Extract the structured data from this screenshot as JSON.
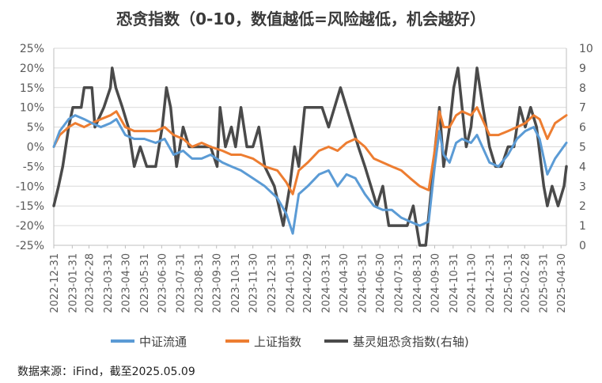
{
  "title": "恐贪指数（0-10，数值越低=风险越低，机会越好）",
  "source": "数据来源：iFind，截至2025.05.09",
  "chart_data": {
    "type": "line",
    "title": "恐贪指数（0-10，数值越低=风险越低，机会越好）",
    "x_ticks": [
      "2022-12-31",
      "2023-01-31",
      "2023-02-28",
      "2023-03-31",
      "2023-04-30",
      "2023-05-31",
      "2023-06-30",
      "2023-07-31",
      "2023-08-31",
      "2023-09-30",
      "2023-10-31",
      "2023-11-30",
      "2023-12-31",
      "2024-01-31",
      "2024-02-29",
      "2024-03-31",
      "2024-04-30",
      "2024-05-31",
      "2024-06-30",
      "2024-07-31",
      "2024-08-31",
      "2024-09-30",
      "2024-10-31",
      "2024-11-30",
      "2024-12-31",
      "2025-01-31",
      "2025-02-28",
      "2025-03-31",
      "2025-04-30"
    ],
    "x_range": [
      "2022-12-31",
      "2025-05-09"
    ],
    "y_left_ticks": [
      "25%",
      "20%",
      "15%",
      "10%",
      "5%",
      "0%",
      "-5%",
      "-10%",
      "-15%",
      "-20%",
      "-25%"
    ],
    "y_left_range": [
      -25,
      25
    ],
    "y_right_ticks": [
      "10",
      "9",
      "8",
      "7",
      "6",
      "5",
      "4",
      "3",
      "2",
      "1",
      "0"
    ],
    "y_right_range": [
      0,
      10
    ],
    "legend_position": "bottom",
    "series": [
      {
        "name": "中证流通",
        "axis": "left",
        "color": "#5b9bd5",
        "points": [
          [
            "2022-12-31",
            0
          ],
          [
            "2023-01-10",
            4
          ],
          [
            "2023-01-25",
            7
          ],
          [
            "2023-02-05",
            8
          ],
          [
            "2023-02-20",
            7
          ],
          [
            "2023-03-05",
            6
          ],
          [
            "2023-03-20",
            5
          ],
          [
            "2023-04-05",
            6
          ],
          [
            "2023-04-15",
            7
          ],
          [
            "2023-04-30",
            3
          ],
          [
            "2023-05-15",
            2
          ],
          [
            "2023-06-01",
            2
          ],
          [
            "2023-06-20",
            1
          ],
          [
            "2023-07-05",
            2
          ],
          [
            "2023-07-20",
            -2
          ],
          [
            "2023-08-05",
            -1
          ],
          [
            "2023-08-20",
            -3
          ],
          [
            "2023-09-05",
            -3
          ],
          [
            "2023-09-20",
            -2
          ],
          [
            "2023-10-10",
            -4
          ],
          [
            "2023-10-25",
            -5
          ],
          [
            "2023-11-10",
            -6
          ],
          [
            "2023-11-30",
            -8
          ],
          [
            "2023-12-20",
            -10
          ],
          [
            "2024-01-10",
            -13
          ],
          [
            "2024-01-25",
            -17
          ],
          [
            "2024-02-05",
            -22
          ],
          [
            "2024-02-15",
            -12
          ],
          [
            "2024-03-01",
            -10
          ],
          [
            "2024-03-20",
            -7
          ],
          [
            "2024-04-05",
            -6
          ],
          [
            "2024-04-20",
            -10
          ],
          [
            "2024-05-05",
            -7
          ],
          [
            "2024-05-20",
            -8
          ],
          [
            "2024-06-05",
            -12
          ],
          [
            "2024-06-20",
            -15
          ],
          [
            "2024-07-05",
            -16
          ],
          [
            "2024-07-20",
            -16
          ],
          [
            "2024-08-05",
            -18
          ],
          [
            "2024-08-20",
            -19
          ],
          [
            "2024-09-05",
            -20
          ],
          [
            "2024-09-20",
            -19
          ],
          [
            "2024-09-30",
            -5
          ],
          [
            "2024-10-08",
            4
          ],
          [
            "2024-10-15",
            -2
          ],
          [
            "2024-10-25",
            -4
          ],
          [
            "2024-11-05",
            1
          ],
          [
            "2024-11-15",
            2
          ],
          [
            "2024-11-30",
            1
          ],
          [
            "2024-12-10",
            3
          ],
          [
            "2024-12-31",
            -4
          ],
          [
            "2025-01-15",
            -5
          ],
          [
            "2025-01-31",
            -2
          ],
          [
            "2025-02-15",
            2
          ],
          [
            "2025-03-01",
            4
          ],
          [
            "2025-03-15",
            5
          ],
          [
            "2025-03-25",
            2
          ],
          [
            "2025-04-07",
            -7
          ],
          [
            "2025-04-20",
            -3
          ],
          [
            "2025-05-09",
            1
          ]
        ]
      },
      {
        "name": "上证指数",
        "axis": "left",
        "color": "#ed7d31",
        "points": [
          [
            "2022-12-31",
            0
          ],
          [
            "2023-01-10",
            3
          ],
          [
            "2023-01-25",
            5
          ],
          [
            "2023-02-05",
            6
          ],
          [
            "2023-02-20",
            5
          ],
          [
            "2023-03-05",
            6
          ],
          [
            "2023-03-20",
            7
          ],
          [
            "2023-04-05",
            8
          ],
          [
            "2023-04-15",
            9
          ],
          [
            "2023-04-30",
            5
          ],
          [
            "2023-05-15",
            4
          ],
          [
            "2023-06-01",
            4
          ],
          [
            "2023-06-20",
            4
          ],
          [
            "2023-07-05",
            5
          ],
          [
            "2023-07-20",
            3
          ],
          [
            "2023-08-05",
            2
          ],
          [
            "2023-08-20",
            0
          ],
          [
            "2023-09-05",
            1
          ],
          [
            "2023-09-20",
            0
          ],
          [
            "2023-10-10",
            -1
          ],
          [
            "2023-10-25",
            -2
          ],
          [
            "2023-11-10",
            -2
          ],
          [
            "2023-11-30",
            -3
          ],
          [
            "2023-12-20",
            -5
          ],
          [
            "2024-01-10",
            -6
          ],
          [
            "2024-01-25",
            -9
          ],
          [
            "2024-02-05",
            -12
          ],
          [
            "2024-02-15",
            -6
          ],
          [
            "2024-03-01",
            -4
          ],
          [
            "2024-03-20",
            -1
          ],
          [
            "2024-04-05",
            0
          ],
          [
            "2024-04-20",
            -1
          ],
          [
            "2024-05-05",
            1
          ],
          [
            "2024-05-20",
            2
          ],
          [
            "2024-06-05",
            0
          ],
          [
            "2024-06-20",
            -3
          ],
          [
            "2024-07-05",
            -4
          ],
          [
            "2024-07-20",
            -5
          ],
          [
            "2024-08-05",
            -6
          ],
          [
            "2024-08-20",
            -8
          ],
          [
            "2024-09-05",
            -10
          ],
          [
            "2024-09-20",
            -11
          ],
          [
            "2024-09-30",
            -1
          ],
          [
            "2024-10-08",
            9
          ],
          [
            "2024-10-15",
            5
          ],
          [
            "2024-10-25",
            5
          ],
          [
            "2024-11-05",
            8
          ],
          [
            "2024-11-15",
            9
          ],
          [
            "2024-11-30",
            8
          ],
          [
            "2024-12-10",
            10
          ],
          [
            "2024-12-31",
            3
          ],
          [
            "2025-01-15",
            3
          ],
          [
            "2025-01-31",
            4
          ],
          [
            "2025-02-15",
            5
          ],
          [
            "2025-03-01",
            6
          ],
          [
            "2025-03-15",
            8
          ],
          [
            "2025-03-25",
            7
          ],
          [
            "2025-04-07",
            2
          ],
          [
            "2025-04-20",
            6
          ],
          [
            "2025-05-09",
            8
          ]
        ]
      },
      {
        "name": "基灵姐恐贪指数(右轴)",
        "axis": "right",
        "color": "#4a4a4a",
        "points": [
          [
            "2022-12-31",
            2
          ],
          [
            "2023-01-08",
            3
          ],
          [
            "2023-01-15",
            4
          ],
          [
            "2023-01-25",
            6
          ],
          [
            "2023-02-01",
            7
          ],
          [
            "2023-02-15",
            7
          ],
          [
            "2023-02-20",
            8
          ],
          [
            "2023-03-05",
            8
          ],
          [
            "2023-03-10",
            6
          ],
          [
            "2023-03-25",
            7
          ],
          [
            "2023-04-05",
            8
          ],
          [
            "2023-04-08",
            9
          ],
          [
            "2023-04-14",
            8
          ],
          [
            "2023-04-25",
            7
          ],
          [
            "2023-05-05",
            6
          ],
          [
            "2023-05-15",
            4
          ],
          [
            "2023-05-25",
            5
          ],
          [
            "2023-06-05",
            4
          ],
          [
            "2023-06-20",
            4
          ],
          [
            "2023-07-01",
            6
          ],
          [
            "2023-07-08",
            8
          ],
          [
            "2023-07-15",
            7
          ],
          [
            "2023-07-25",
            4
          ],
          [
            "2023-08-05",
            6
          ],
          [
            "2023-08-15",
            5
          ],
          [
            "2023-08-25",
            5
          ],
          [
            "2023-09-05",
            5
          ],
          [
            "2023-09-20",
            5
          ],
          [
            "2023-10-01",
            4
          ],
          [
            "2023-10-06",
            7
          ],
          [
            "2023-10-15",
            5
          ],
          [
            "2023-10-25",
            6
          ],
          [
            "2023-11-01",
            5
          ],
          [
            "2023-11-10",
            7
          ],
          [
            "2023-11-20",
            5
          ],
          [
            "2023-11-30",
            5
          ],
          [
            "2023-12-10",
            6
          ],
          [
            "2023-12-20",
            4
          ],
          [
            "2024-01-05",
            3
          ],
          [
            "2024-01-20",
            1
          ],
          [
            "2024-01-31",
            3
          ],
          [
            "2024-02-08",
            5
          ],
          [
            "2024-02-15",
            4
          ],
          [
            "2024-02-25",
            7
          ],
          [
            "2024-03-10",
            7
          ],
          [
            "2024-03-25",
            7
          ],
          [
            "2024-04-05",
            6
          ],
          [
            "2024-04-15",
            7
          ],
          [
            "2024-04-25",
            8
          ],
          [
            "2024-05-05",
            7
          ],
          [
            "2024-05-15",
            6
          ],
          [
            "2024-05-25",
            5
          ],
          [
            "2024-06-05",
            4
          ],
          [
            "2024-06-15",
            3
          ],
          [
            "2024-06-25",
            2
          ],
          [
            "2024-07-05",
            3
          ],
          [
            "2024-07-15",
            1
          ],
          [
            "2024-07-25",
            1
          ],
          [
            "2024-08-05",
            1
          ],
          [
            "2024-08-15",
            1
          ],
          [
            "2024-08-25",
            2
          ],
          [
            "2024-09-05",
            0
          ],
          [
            "2024-09-15",
            0
          ],
          [
            "2024-09-25",
            3
          ],
          [
            "2024-10-01",
            5
          ],
          [
            "2024-10-08",
            7
          ],
          [
            "2024-10-15",
            4
          ],
          [
            "2024-10-25",
            6
          ],
          [
            "2024-11-01",
            8
          ],
          [
            "2024-11-08",
            9
          ],
          [
            "2024-11-15",
            7
          ],
          [
            "2024-11-22",
            5
          ],
          [
            "2024-11-30",
            6
          ],
          [
            "2024-12-10",
            9
          ],
          [
            "2024-12-20",
            7
          ],
          [
            "2024-12-31",
            5
          ],
          [
            "2025-01-10",
            4
          ],
          [
            "2025-01-20",
            4
          ],
          [
            "2025-01-31",
            5
          ],
          [
            "2025-02-10",
            5
          ],
          [
            "2025-02-20",
            7
          ],
          [
            "2025-03-01",
            6
          ],
          [
            "2025-03-10",
            7
          ],
          [
            "2025-03-20",
            6
          ],
          [
            "2025-04-01",
            3
          ],
          [
            "2025-04-07",
            2
          ],
          [
            "2025-04-15",
            3
          ],
          [
            "2025-04-25",
            2
          ],
          [
            "2025-05-05",
            3
          ],
          [
            "2025-05-09",
            4
          ]
        ]
      }
    ]
  }
}
